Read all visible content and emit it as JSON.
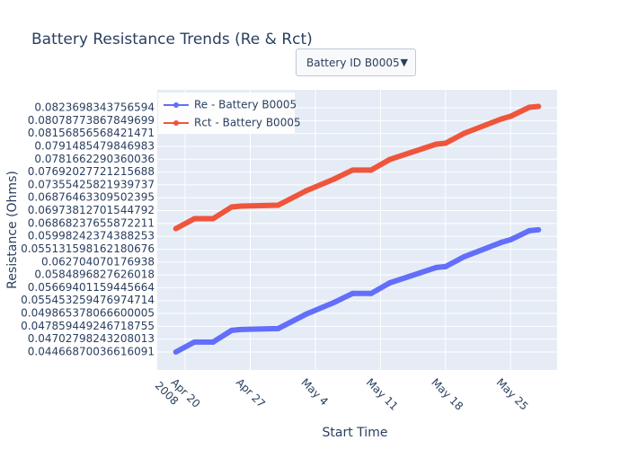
{
  "chart_data": {
    "type": "line",
    "title": "Battery Resistance Trends (Re & Rct)",
    "dropdown": "Battery ID B0005",
    "x_label": "Start Time",
    "y_label": "Resistance (Ohms)",
    "x": [
      "2008-04-19",
      "2008-04-21",
      "2008-04-23",
      "2008-04-25",
      "2008-04-26",
      "2008-04-30",
      "2008-05-03",
      "2008-05-06",
      "2008-05-08",
      "2008-05-10",
      "2008-05-12",
      "2008-05-17",
      "2008-05-18",
      "2008-05-20",
      "2008-05-24",
      "2008-05-25",
      "2008-05-27",
      "2008-05-28"
    ],
    "xlim": [
      "2008-04-17",
      "2008-05-30"
    ],
    "xticks": [
      {
        "value": "2008-04-20",
        "label": "Apr 20",
        "label2": "2008"
      },
      {
        "value": "2008-04-27",
        "label": "Apr 27"
      },
      {
        "value": "2008-05-04",
        "label": "May 4"
      },
      {
        "value": "2008-05-11",
        "label": "May 11"
      },
      {
        "value": "2008-05-18",
        "label": "May 18"
      },
      {
        "value": "2008-05-25",
        "label": "May 25"
      }
    ],
    "ylim": [
      -1.4,
      20.4
    ],
    "yticks": [
      {
        "value": 0,
        "label": "0.04466870036616091"
      },
      {
        "value": 1,
        "label": "0.04702798243208013"
      },
      {
        "value": 2,
        "label": "0.047859449246718755"
      },
      {
        "value": 3,
        "label": "0.049865378066600005"
      },
      {
        "value": 4,
        "label": "0.055453259476974714"
      },
      {
        "value": 5,
        "label": "0.05669401159445664"
      },
      {
        "value": 6,
        "label": "0.0584896827626018"
      },
      {
        "value": 7,
        "label": "0.062704070176938"
      },
      {
        "value": 8,
        "label": "0.055131598162180676"
      },
      {
        "value": 9,
        "label": "0.05998242374388253"
      },
      {
        "value": 10,
        "label": "0.06868237655872211"
      },
      {
        "value": 11,
        "label": "0.06973812701544792"
      },
      {
        "value": 12,
        "label": "0.06876463309502395"
      },
      {
        "value": 13,
        "label": "0.07355425821939737"
      },
      {
        "value": 14,
        "label": "0.07692027721215688"
      },
      {
        "value": 15,
        "label": "0.0781662290360036"
      },
      {
        "value": 16,
        "label": "0.0791485479846983"
      },
      {
        "value": 17,
        "label": "0.08156856568421471"
      },
      {
        "value": 18,
        "label": "0.08078773867849699"
      },
      {
        "value": 19,
        "label": "0.0823698343756594"
      }
    ],
    "grid": true,
    "legend": "top-left",
    "series": [
      {
        "name": "Re - Battery B0005",
        "color": "#636efa",
        "values": [
          0,
          0.77,
          0.77,
          1.68,
          1.75,
          1.82,
          2.94,
          3.85,
          4.55,
          4.55,
          5.38,
          6.57,
          6.64,
          7.41,
          8.53,
          8.74,
          9.44,
          9.51
        ]
      },
      {
        "name": "Rct - Battery B0005",
        "color": "#ef553b",
        "values": [
          9.6,
          10.37,
          10.37,
          11.28,
          11.35,
          11.42,
          12.54,
          13.45,
          14.15,
          14.15,
          14.98,
          16.17,
          16.24,
          17.01,
          18.13,
          18.34,
          19.04,
          19.11
        ]
      }
    ]
  }
}
